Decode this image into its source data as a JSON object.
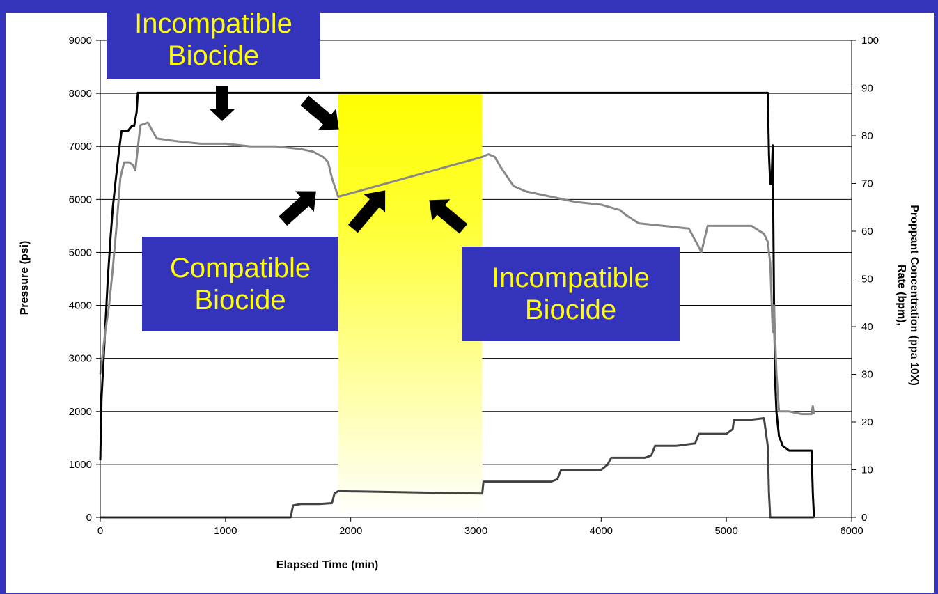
{
  "chart_data": {
    "type": "line",
    "xlabel": "Elapsed Time (min)",
    "ylabel_left": "Pressure (psi)",
    "ylabel_right_line1": "Rate (bpm),",
    "ylabel_right_line2": "Proppant Concentration (ppa 10X)",
    "xlim": [
      0,
      6000
    ],
    "ylim_left": [
      0,
      9000
    ],
    "ylim_right": [
      0,
      100
    ],
    "x_ticks": [
      "0",
      "1000",
      "2000",
      "3000",
      "4000",
      "5000",
      "6000"
    ],
    "y_left_ticks": [
      "0",
      "1000",
      "2000",
      "3000",
      "4000",
      "5000",
      "6000",
      "7000",
      "8000",
      "9000"
    ],
    "y_right_ticks": [
      "0",
      "10",
      "20",
      "30",
      "40",
      "50",
      "60",
      "70",
      "80",
      "90",
      "100"
    ],
    "grid": "horizontal",
    "highlight_region": {
      "x": [
        1900,
        3050
      ],
      "color_top": "#ffff00",
      "color_bottom": "#ffffff"
    },
    "series": [
      {
        "axis": "right",
        "color": "#000000",
        "x": [
          0,
          10,
          30,
          60,
          80,
          100,
          120,
          150,
          170,
          190,
          220,
          250,
          270,
          290,
          300,
          500,
          1000,
          1500,
          1900,
          3050,
          3500,
          4000,
          4500,
          5000,
          5300,
          5330,
          5340,
          5350,
          5360,
          5370,
          5380,
          5390,
          5400,
          5420,
          5450,
          5500,
          5600,
          5680,
          5690,
          5700
        ],
        "y": [
          12,
          25,
          35,
          50,
          58,
          65,
          70,
          77,
          81,
          81,
          81,
          82,
          82,
          85,
          89,
          89,
          89,
          89,
          89,
          89,
          89,
          89,
          89,
          89,
          89,
          89,
          76,
          70,
          70,
          78,
          45,
          28,
          22,
          17,
          15,
          14,
          14,
          14,
          5,
          0
        ]
      },
      {
        "axis": "left",
        "color": "#888888",
        "x": [
          0,
          20,
          40,
          70,
          100,
          130,
          160,
          190,
          230,
          260,
          280,
          320,
          380,
          450,
          600,
          800,
          1000,
          1200,
          1400,
          1600,
          1700,
          1780,
          1820,
          1850,
          1900,
          3050,
          3100,
          3150,
          3200,
          3300,
          3400,
          3600,
          3800,
          4000,
          4150,
          4200,
          4300,
          4500,
          4700,
          4780,
          4800,
          4850,
          5000,
          5200,
          5300,
          5330,
          5350,
          5370,
          5380,
          5400,
          5420,
          5450,
          5500,
          5600,
          5680,
          5690,
          5700
        ],
        "y": [
          2700,
          3100,
          3500,
          4000,
          4700,
          5500,
          6400,
          6700,
          6700,
          6650,
          6550,
          7400,
          7450,
          7150,
          7100,
          7050,
          7050,
          7000,
          7000,
          6950,
          6900,
          6800,
          6700,
          6400,
          6050,
          6800,
          6850,
          6800,
          6600,
          6250,
          6150,
          6050,
          5950,
          5900,
          5800,
          5700,
          5550,
          5500,
          5450,
          5100,
          5000,
          5500,
          5500,
          5500,
          5350,
          5200,
          4800,
          3500,
          4000,
          2700,
          2000,
          2000,
          2000,
          1950,
          1950,
          2100,
          1950
        ]
      },
      {
        "axis": "right",
        "color": "#444444",
        "x": [
          0,
          1520,
          1540,
          1600,
          1750,
          1850,
          1870,
          1900,
          3050,
          3060,
          3200,
          3400,
          3600,
          3650,
          3680,
          3700,
          3900,
          4000,
          4050,
          4080,
          4200,
          4350,
          4400,
          4430,
          4600,
          4750,
          4780,
          4800,
          5000,
          5050,
          5060,
          5200,
          5300,
          5330,
          5340,
          5350,
          5700
        ],
        "y": [
          0,
          0,
          2.5,
          2.8,
          2.8,
          3,
          5,
          5.5,
          5,
          7.5,
          7.5,
          7.5,
          7.5,
          8,
          10,
          10,
          10,
          10,
          11,
          12.5,
          12.5,
          12.5,
          13,
          15,
          15,
          15.5,
          17.5,
          17.5,
          17.5,
          18.5,
          20.5,
          20.5,
          20.8,
          15,
          5,
          0,
          0
        ]
      }
    ]
  },
  "callouts": {
    "top": {
      "line1": "Incompatible",
      "line2": "Biocide"
    },
    "left": {
      "line1": "Compatible",
      "line2": "Biocide"
    },
    "right": {
      "line1": "Incompatible",
      "line2": "Biocide"
    }
  }
}
